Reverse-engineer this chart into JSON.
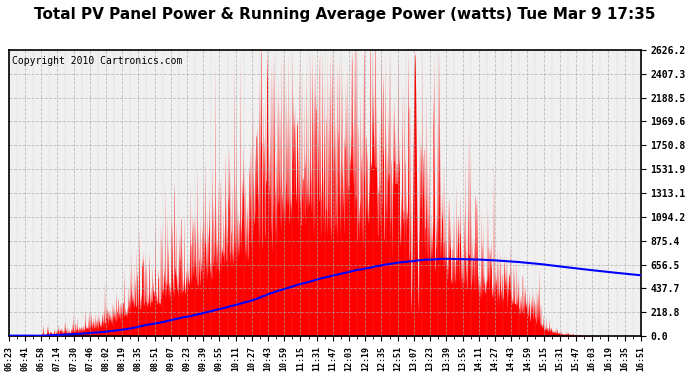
{
  "title": "Total PV Panel Power & Running Average Power (watts) Tue Mar 9 17:35",
  "copyright": "Copyright 2010 Cartronics.com",
  "y_max": 2626.2,
  "y_ticks": [
    0.0,
    218.8,
    437.7,
    656.5,
    875.4,
    1094.2,
    1313.1,
    1531.9,
    1750.8,
    1969.6,
    2188.5,
    2407.3,
    2626.2
  ],
  "x_labels": [
    "06:23",
    "06:41",
    "06:58",
    "07:14",
    "07:30",
    "07:46",
    "08:02",
    "08:19",
    "08:35",
    "08:51",
    "09:07",
    "09:23",
    "09:39",
    "09:55",
    "10:11",
    "10:27",
    "10:43",
    "10:59",
    "11:15",
    "11:31",
    "11:47",
    "12:03",
    "12:19",
    "12:35",
    "12:51",
    "13:07",
    "13:23",
    "13:39",
    "13:55",
    "14:11",
    "14:27",
    "14:43",
    "14:59",
    "15:15",
    "15:31",
    "15:47",
    "16:03",
    "16:19",
    "16:35",
    "16:51"
  ],
  "fill_color": "#FF0000",
  "line_color": "#0000FF",
  "background_color": "#FFFFFF",
  "plot_bg_color": "#F0F0F0",
  "grid_color": "#AAAAAA",
  "title_fontsize": 11,
  "copyright_fontsize": 7
}
